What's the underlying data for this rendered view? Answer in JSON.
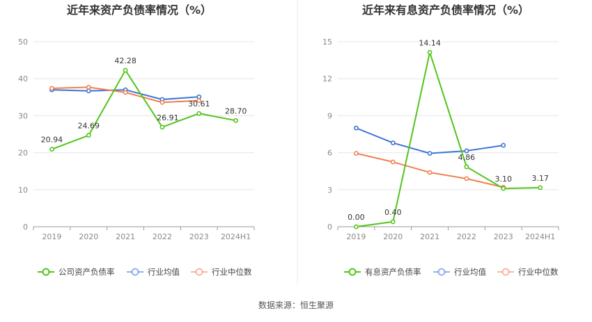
{
  "source_label": "数据来源：恒生聚源",
  "chart_data": [
    {
      "type": "line",
      "title": "近年来资产负债率情况（%）",
      "categories": [
        "2019",
        "2020",
        "2021",
        "2022",
        "2023",
        "2024H1"
      ],
      "ylim": [
        0,
        50
      ],
      "yticks": [
        0,
        10,
        20,
        30,
        40,
        50
      ],
      "grid": true,
      "legend_position": "bottom",
      "series": [
        {
          "name": "公司资产负债率",
          "color": "#52c41a",
          "values": [
            20.94,
            24.69,
            42.28,
            26.91,
            30.61,
            28.7
          ],
          "labels": [
            "20.94",
            "24.69",
            "42.28",
            "26.91",
            "30.61",
            "28.70"
          ]
        },
        {
          "name": "行业均值",
          "color": "#3a75d6",
          "values": [
            37.0,
            36.7,
            37.0,
            34.4,
            35.1,
            null
          ]
        },
        {
          "name": "行业中位数",
          "color": "#f08050",
          "values": [
            37.4,
            37.7,
            36.3,
            33.6,
            34.1,
            null
          ]
        }
      ]
    },
    {
      "type": "line",
      "title": "近年来有息资产负债率情况（%）",
      "categories": [
        "2019",
        "2020",
        "2021",
        "2022",
        "2023",
        "2024H1"
      ],
      "ylim": [
        0,
        15
      ],
      "yticks": [
        0,
        3,
        6,
        9,
        12,
        15
      ],
      "grid": true,
      "legend_position": "bottom",
      "series": [
        {
          "name": "有息资产负债率",
          "color": "#52c41a",
          "values": [
            0.0,
            0.4,
            14.14,
            4.86,
            3.1,
            3.17
          ],
          "labels": [
            "0.00",
            "0.40",
            "14.14",
            "4.86",
            "3.10",
            "3.17"
          ]
        },
        {
          "name": "行业均值",
          "color": "#3a75d6",
          "values": [
            8.0,
            6.8,
            5.95,
            6.15,
            6.6,
            null
          ]
        },
        {
          "name": "行业中位数",
          "color": "#f08050",
          "values": [
            5.95,
            5.25,
            4.4,
            3.9,
            3.2,
            null
          ]
        }
      ]
    }
  ]
}
